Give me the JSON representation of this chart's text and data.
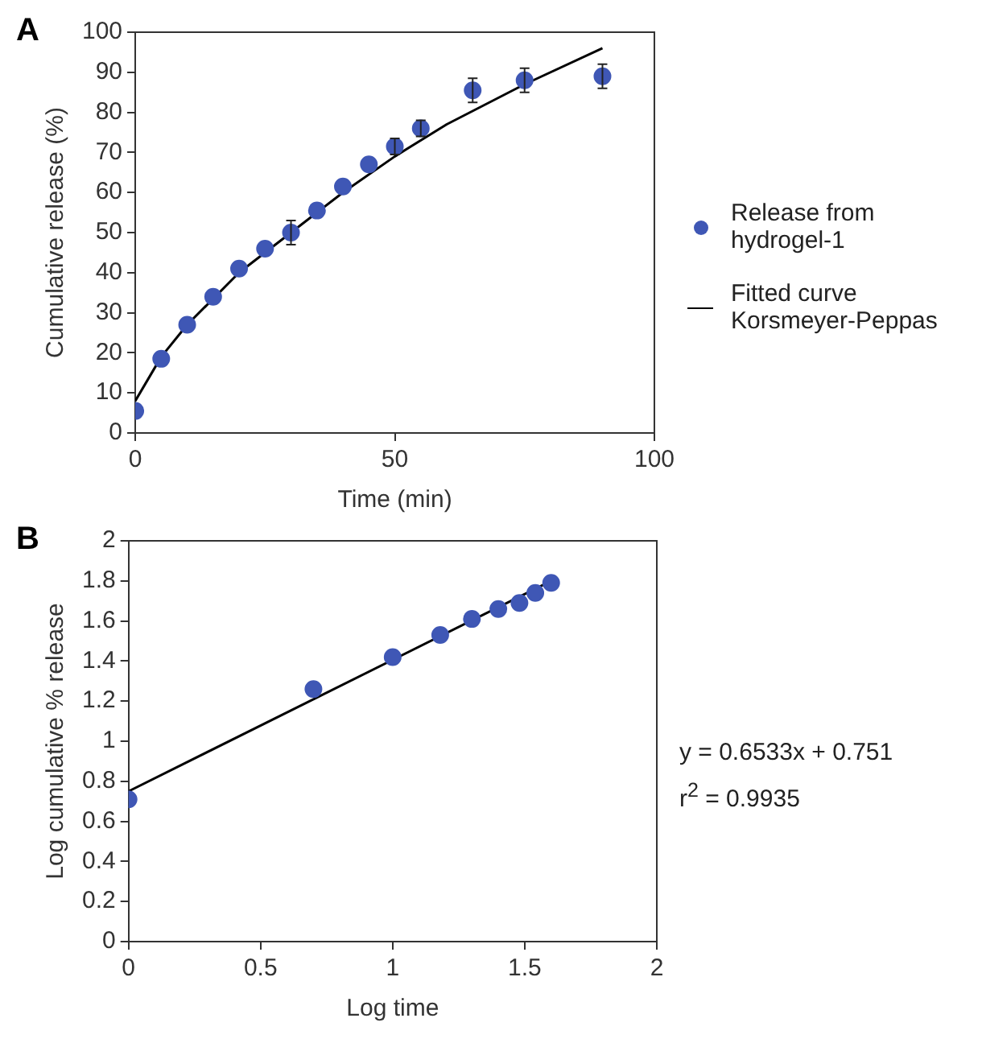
{
  "chart_data": [
    {
      "type": "scatter",
      "title": "A",
      "xlabel": "Time (min)",
      "ylabel": "Cumulative release (%)",
      "xlim": [
        0,
        100
      ],
      "xticks": [
        0,
        50,
        100
      ],
      "ylim": [
        0,
        100
      ],
      "yticks": [
        0,
        10,
        20,
        30,
        40,
        50,
        60,
        70,
        80,
        90,
        100
      ],
      "grid": false,
      "legend": "right",
      "series": [
        {
          "name": "Release from hydrogel-1",
          "marker": "circle",
          "color": "#3f57b5",
          "x": [
            0,
            5,
            10,
            15,
            20,
            25,
            30,
            35,
            40,
            45,
            50,
            55,
            65,
            75,
            90
          ],
          "values": [
            5.5,
            18.5,
            27,
            34,
            41,
            46,
            50,
            55.5,
            61.5,
            67,
            71.5,
            76,
            85.5,
            88,
            89
          ],
          "errors": [
            null,
            null,
            null,
            null,
            null,
            null,
            3,
            null,
            null,
            null,
            2,
            2,
            3,
            3,
            3
          ]
        },
        {
          "name": "Fitted curve Korsmeyer-Peppas",
          "type": "line",
          "marker": "none",
          "color": "#000000",
          "x": [
            0,
            5,
            10,
            20,
            30,
            40,
            50,
            60,
            75,
            90
          ],
          "values": [
            8,
            19,
            27,
            40,
            50,
            60,
            69,
            77,
            87,
            96
          ]
        }
      ]
    },
    {
      "type": "scatter",
      "title": "B",
      "xlabel": "Log time",
      "ylabel": "Log cumulative % release",
      "xlim": [
        0,
        2
      ],
      "xticks": [
        0,
        0.5,
        1,
        1.5,
        2
      ],
      "ylim": [
        0,
        2
      ],
      "yticks": [
        0,
        0.2,
        0.4,
        0.6,
        0.8,
        1,
        1.2,
        1.4,
        1.6,
        1.8,
        2
      ],
      "grid": false,
      "annotations": [
        "y = 0.6533x + 0.751",
        "r$^{2}$ = 0.9935"
      ],
      "series": [
        {
          "marker": "circle",
          "color": "#3f57b5",
          "x": [
            0,
            0.7,
            1,
            1.18,
            1.3,
            1.4,
            1.48,
            1.54,
            1.6
          ],
          "values": [
            0.71,
            1.26,
            1.42,
            1.53,
            1.61,
            1.66,
            1.69,
            1.74,
            1.79
          ]
        },
        {
          "type": "line",
          "marker": "none",
          "color": "#000000",
          "x": [
            0,
            1.6
          ],
          "values": [
            0.75,
            1.8
          ]
        }
      ]
    }
  ]
}
